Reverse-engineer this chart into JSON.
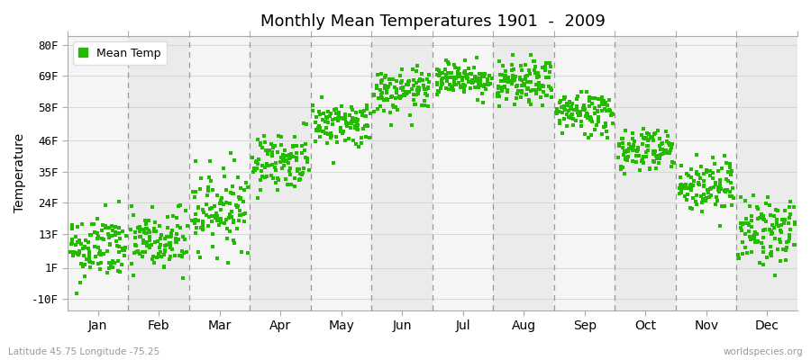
{
  "title": "Monthly Mean Temperatures 1901  -  2009",
  "ylabel": "Temperature",
  "ytick_labels": [
    "-10F",
    "1F",
    "13F",
    "24F",
    "35F",
    "46F",
    "58F",
    "69F",
    "80F"
  ],
  "ytick_values": [
    -10,
    1,
    13,
    24,
    35,
    46,
    58,
    69,
    80
  ],
  "ylim": [
    -14,
    83
  ],
  "month_labels": [
    "Jan",
    "Feb",
    "Mar",
    "Apr",
    "May",
    "Jun",
    "Jul",
    "Aug",
    "Sep",
    "Oct",
    "Nov",
    "Dec"
  ],
  "dot_color": "#22bb00",
  "dot_size": 5,
  "legend_label": "Mean Temp",
  "footer_left": "Latitude 45.75 Longitude -75.25",
  "footer_right": "worldspecies.org",
  "background_light": "#f5f5f5",
  "background_dark": "#ebebeb",
  "monthly_means_F": [
    8,
    10,
    22,
    39,
    52,
    63,
    68,
    66,
    56,
    43,
    30,
    14
  ],
  "monthly_stds_F": [
    6,
    6,
    7,
    5,
    4,
    4,
    3,
    4,
    4,
    4,
    5,
    6
  ],
  "n_years": 109,
  "start_year": 1901,
  "end_year": 2009
}
